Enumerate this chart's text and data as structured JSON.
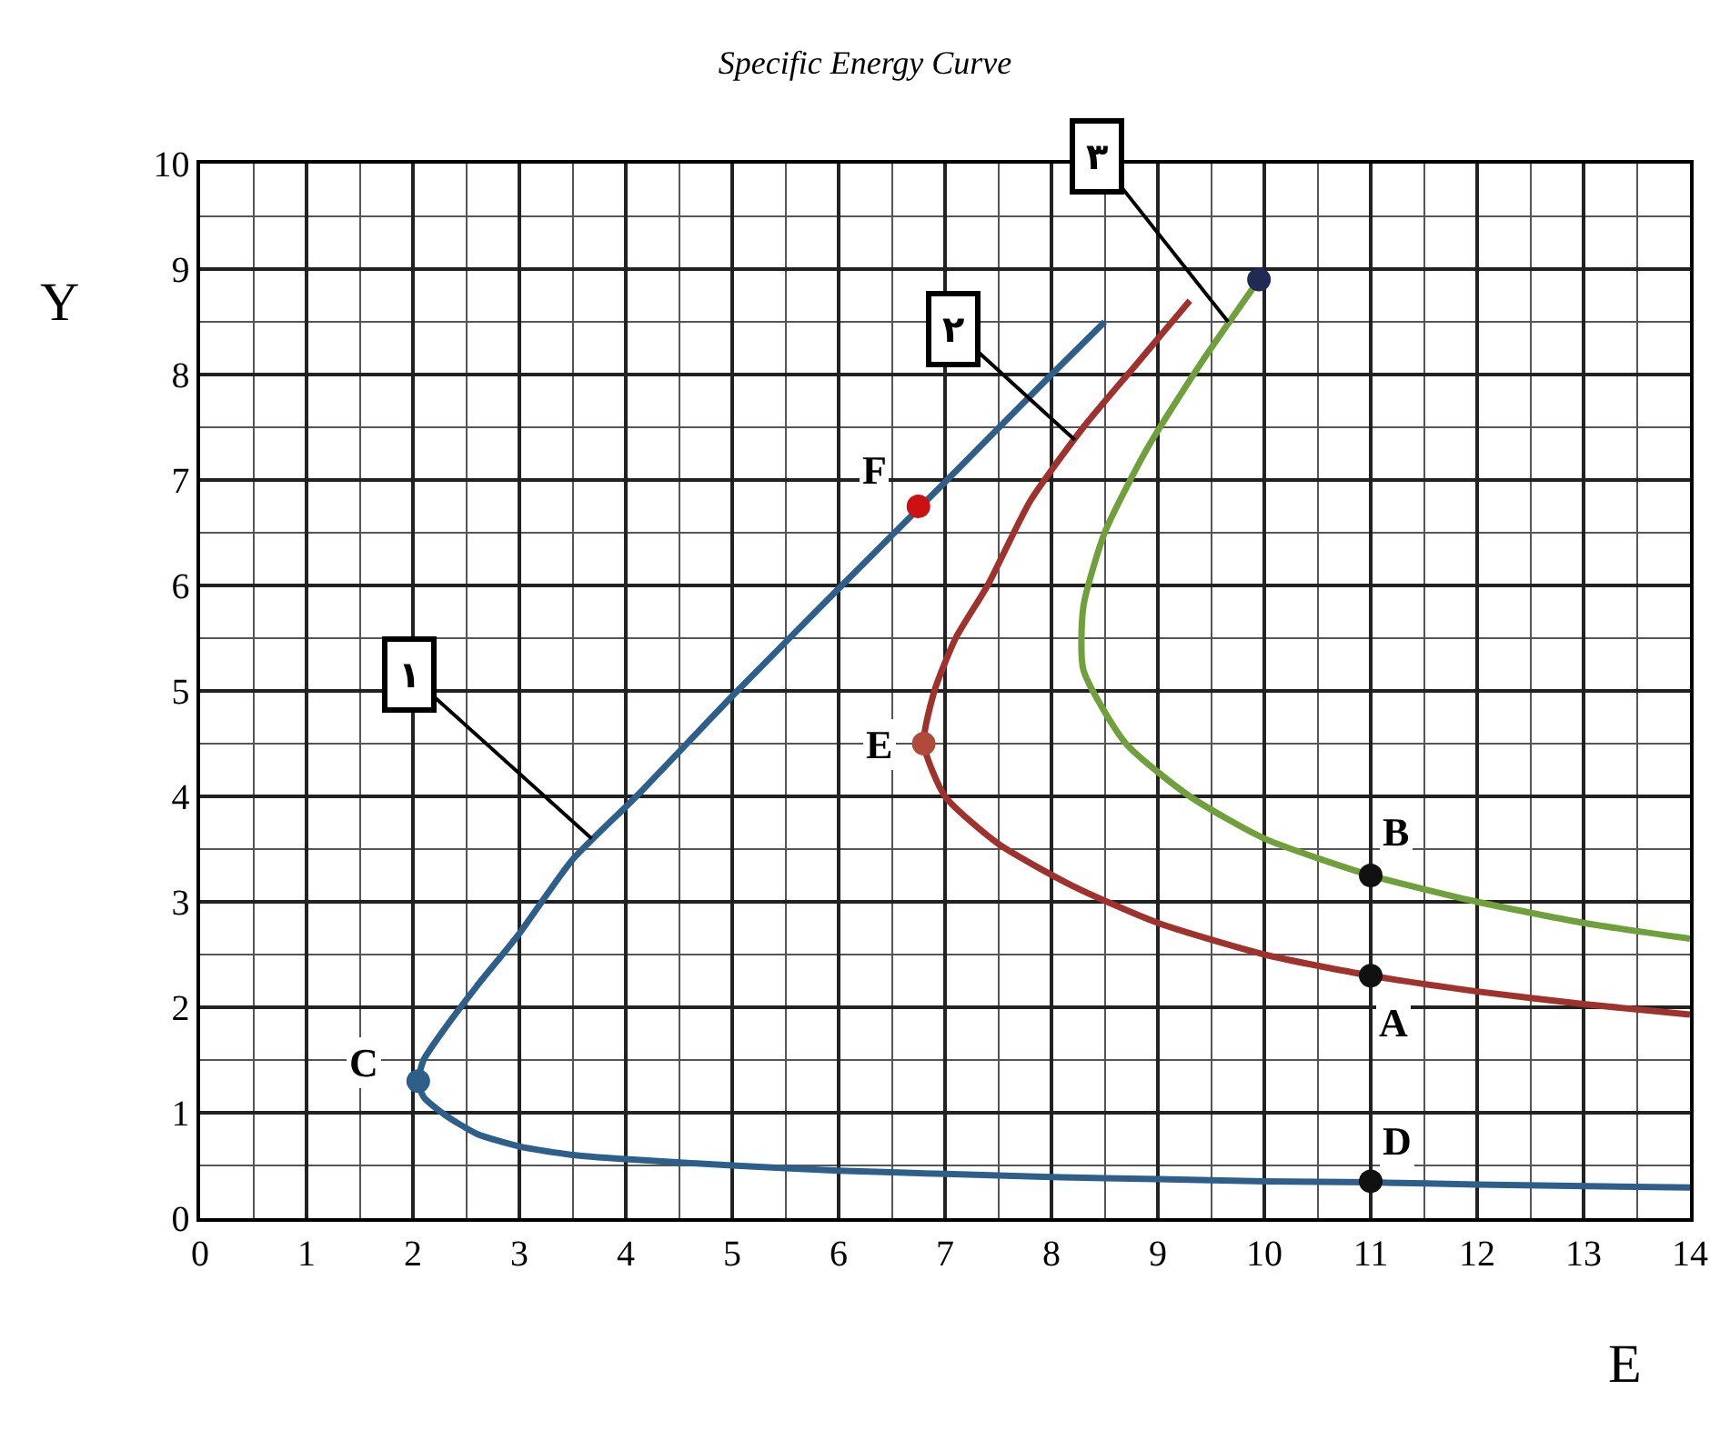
{
  "chart_data": {
    "type": "line",
    "title": "Specific Energy Curve",
    "xlabel": "E",
    "ylabel": "Y",
    "xlim": [
      0,
      14
    ],
    "xticks": [
      0,
      1,
      2,
      3,
      4,
      5,
      6,
      7,
      8,
      9,
      10,
      11,
      12,
      13,
      14
    ],
    "ylim": [
      0,
      10
    ],
    "yticks": [
      0,
      1,
      2,
      3,
      4,
      5,
      6,
      7,
      8,
      9,
      10
    ],
    "grid": true,
    "legend": false,
    "series": [
      {
        "color": "#2e5f8a",
        "x": [
          14,
          12,
          11,
          10,
          9,
          8,
          7,
          6,
          5,
          4,
          3.5,
          3,
          2.6,
          2.3,
          2.1,
          2.05,
          2.1,
          2.3,
          2.6,
          3.0,
          3.5,
          4.1,
          5.0,
          6.0,
          7.0,
          8.0,
          8.5
        ],
        "values": [
          0.29,
          0.32,
          0.34,
          0.35,
          0.37,
          0.39,
          0.42,
          0.45,
          0.5,
          0.56,
          0.6,
          0.68,
          0.8,
          0.98,
          1.15,
          1.3,
          1.5,
          1.8,
          2.2,
          2.7,
          3.4,
          4.0,
          4.95,
          5.97,
          6.98,
          8.0,
          8.5
        ]
      },
      {
        "color": "#a0322e",
        "x": [
          14,
          13,
          12,
          11,
          10,
          9,
          8.2,
          7.5,
          7.0,
          6.8,
          6.9,
          7.1,
          7.4,
          7.8,
          8.3,
          8.8,
          9.3
        ],
        "values": [
          1.93,
          2.03,
          2.15,
          2.3,
          2.5,
          2.8,
          3.15,
          3.55,
          4.0,
          4.5,
          5.0,
          5.5,
          6.0,
          6.8,
          7.5,
          8.1,
          8.7
        ]
      },
      {
        "color": "#70a03c",
        "x": [
          14,
          13,
          12,
          11,
          10,
          9.3,
          8.7,
          8.3,
          8.3,
          8.5,
          8.9,
          9.4,
          9.95
        ],
        "values": [
          2.65,
          2.8,
          3.0,
          3.25,
          3.6,
          4.0,
          4.5,
          5.2,
          5.8,
          6.5,
          7.3,
          8.1,
          8.9
        ]
      },
      {
        "type": "scatter",
        "marker": "circle",
        "x": [
          2.05,
          11,
          11,
          11,
          6.8,
          6.75,
          9.95
        ],
        "values": [
          1.3,
          0.35,
          2.3,
          3.25,
          4.5,
          6.75,
          8.9
        ],
        "colors": [
          "#2e5f8a",
          "#111111",
          "#111111",
          "#111111",
          "#b04a3a",
          "#cc1111",
          "#1f2a55"
        ]
      }
    ],
    "annotations": [
      {
        "text": "C",
        "x": 2.05,
        "y": 1.3
      },
      {
        "text": "D",
        "x": 11,
        "y": 0.35
      },
      {
        "text": "A",
        "x": 11,
        "y": 2.3
      },
      {
        "text": "B",
        "x": 11,
        "y": 3.25
      },
      {
        "text": "E",
        "x": 6.8,
        "y": 4.5
      },
      {
        "text": "F",
        "x": 6.75,
        "y": 6.75
      },
      {
        "text": "۱",
        "x": 3.68,
        "y": 3.6
      },
      {
        "text": "۲",
        "x": 8.22,
        "y": 7.38
      },
      {
        "text": "۳",
        "x": 9.66,
        "y": 8.5
      }
    ]
  }
}
